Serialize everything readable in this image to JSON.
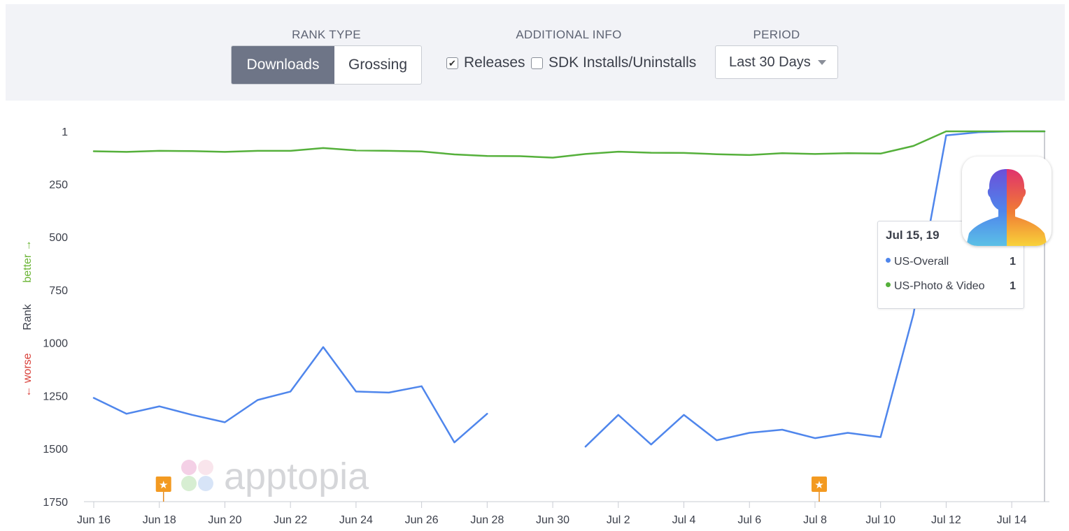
{
  "toolbar": {
    "rank_type": {
      "label": "RANK TYPE",
      "options": [
        "Downloads",
        "Grossing"
      ],
      "selected": "Downloads"
    },
    "additional_info": {
      "label": "ADDITIONAL INFO",
      "releases": {
        "label": "Releases",
        "checked": true
      },
      "sdk": {
        "label": "SDK Installs/Uninstalls",
        "checked": false
      }
    },
    "period": {
      "label": "PERIOD",
      "value": "Last 30 Days"
    }
  },
  "axis": {
    "rank_label": "Rank",
    "better_label": "better →",
    "worse_label": "← worse",
    "better_color": "#6bb536",
    "worse_color": "#d9413a"
  },
  "watermark": "apptopia",
  "tooltip": {
    "date": "Jul 15, 19",
    "rows": [
      {
        "name": "US-Overall",
        "value": "1",
        "color": "#4f86ec"
      },
      {
        "name": "US-Photo & Video",
        "value": "1",
        "color": "#55b03b"
      }
    ]
  },
  "release_marker_icon": "star-icon",
  "app_icon": "faceapp-icon",
  "chart_data": {
    "type": "line",
    "y_reversed": true,
    "ylim": [
      1,
      1750
    ],
    "yticks": [
      1,
      250,
      500,
      750,
      1000,
      1250,
      1500,
      1750
    ],
    "x": [
      "Jun 16",
      "Jun 17",
      "Jun 18",
      "Jun 19",
      "Jun 20",
      "Jun 21",
      "Jun 22",
      "Jun 23",
      "Jun 24",
      "Jun 25",
      "Jun 26",
      "Jun 27",
      "Jun 28",
      "Jun 29",
      "Jun 30",
      "Jul 1",
      "Jul 2",
      "Jul 3",
      "Jul 4",
      "Jul 5",
      "Jul 6",
      "Jul 7",
      "Jul 8",
      "Jul 9",
      "Jul 10",
      "Jul 11",
      "Jul 12",
      "Jul 13",
      "Jul 14",
      "Jul 15"
    ],
    "xtick_labels": [
      "Jun 16",
      "Jun 18",
      "Jun 20",
      "Jun 22",
      "Jun 24",
      "Jun 26",
      "Jun 28",
      "Jun 30",
      "Jul 2",
      "Jul 4",
      "Jul 6",
      "Jul 8",
      "Jul 10",
      "Jul 12",
      "Jul 14"
    ],
    "series": [
      {
        "name": "US-Overall",
        "color": "#4f86ec",
        "values": [
          1260,
          1335,
          1300,
          1340,
          1375,
          1270,
          1230,
          1020,
          1230,
          1235,
          1205,
          1470,
          1335,
          null,
          null,
          1490,
          1340,
          1480,
          1340,
          1460,
          1425,
          1410,
          1450,
          1425,
          1445,
          865,
          20,
          5,
          1,
          1
        ]
      },
      {
        "name": "US-Photo & Video",
        "color": "#55b03b",
        "values": [
          95,
          98,
          93,
          94,
          98,
          93,
          93,
          80,
          91,
          93,
          96,
          110,
          117,
          118,
          125,
          108,
          97,
          102,
          103,
          109,
          113,
          104,
          108,
          104,
          106,
          70,
          1,
          1,
          1,
          1
        ]
      }
    ],
    "release_markers": [
      "Jun 18",
      "Jul 8"
    ]
  }
}
